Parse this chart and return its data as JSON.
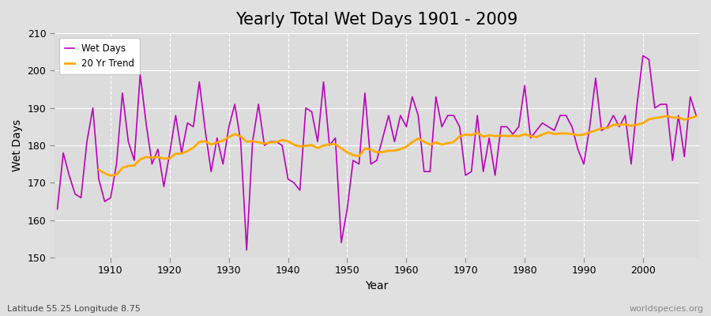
{
  "title": "Yearly Total Wet Days 1901 - 2009",
  "xlabel": "Year",
  "ylabel": "Wet Days",
  "subtitle": "Latitude 55.25 Longitude 8.75",
  "watermark": "worldspecies.org",
  "years": [
    1901,
    1902,
    1903,
    1904,
    1905,
    1906,
    1907,
    1908,
    1909,
    1910,
    1911,
    1912,
    1913,
    1914,
    1915,
    1916,
    1917,
    1918,
    1919,
    1920,
    1921,
    1922,
    1923,
    1924,
    1925,
    1926,
    1927,
    1928,
    1929,
    1930,
    1931,
    1932,
    1933,
    1934,
    1935,
    1936,
    1937,
    1938,
    1939,
    1940,
    1941,
    1942,
    1943,
    1944,
    1945,
    1946,
    1947,
    1948,
    1949,
    1950,
    1951,
    1952,
    1953,
    1954,
    1955,
    1956,
    1957,
    1958,
    1959,
    1960,
    1961,
    1962,
    1963,
    1964,
    1965,
    1966,
    1967,
    1968,
    1969,
    1970,
    1971,
    1972,
    1973,
    1974,
    1975,
    1976,
    1977,
    1978,
    1979,
    1980,
    1981,
    1982,
    1983,
    1984,
    1985,
    1986,
    1987,
    1988,
    1989,
    1990,
    1991,
    1992,
    1993,
    1994,
    1995,
    1996,
    1997,
    1998,
    1999,
    2000,
    2001,
    2002,
    2003,
    2004,
    2005,
    2006,
    2007,
    2008,
    2009
  ],
  "wet_days": [
    163,
    178,
    172,
    167,
    166,
    181,
    190,
    171,
    165,
    166,
    175,
    194,
    181,
    176,
    199,
    186,
    175,
    179,
    169,
    178,
    188,
    178,
    186,
    185,
    197,
    184,
    173,
    182,
    175,
    185,
    191,
    181,
    152,
    181,
    191,
    180,
    181,
    181,
    180,
    171,
    170,
    168,
    190,
    189,
    181,
    197,
    180,
    182,
    154,
    163,
    176,
    175,
    194,
    175,
    176,
    182,
    188,
    181,
    188,
    185,
    193,
    188,
    173,
    173,
    193,
    185,
    188,
    188,
    185,
    172,
    173,
    188,
    173,
    182,
    172,
    185,
    185,
    183,
    185,
    196,
    182,
    184,
    186,
    185,
    184,
    188,
    188,
    185,
    179,
    175,
    185,
    198,
    184,
    185,
    188,
    185,
    188,
    175,
    191,
    204,
    203,
    190,
    191,
    191,
    176,
    188,
    177,
    193,
    188
  ],
  "line_color": "#bb00bb",
  "trend_color": "#ffaa00",
  "bg_color": "#e0e0e0",
  "plot_bg_color": "#dcdcdc",
  "grid_color": "#ffffff",
  "ylim": [
    150,
    210
  ],
  "yticks": [
    150,
    160,
    170,
    180,
    190,
    200,
    210
  ],
  "xticks": [
    1910,
    1920,
    1930,
    1940,
    1950,
    1960,
    1970,
    1980,
    1990,
    2000
  ],
  "trend_window": 20,
  "title_fontsize": 15,
  "axis_fontsize": 10,
  "tick_fontsize": 9
}
